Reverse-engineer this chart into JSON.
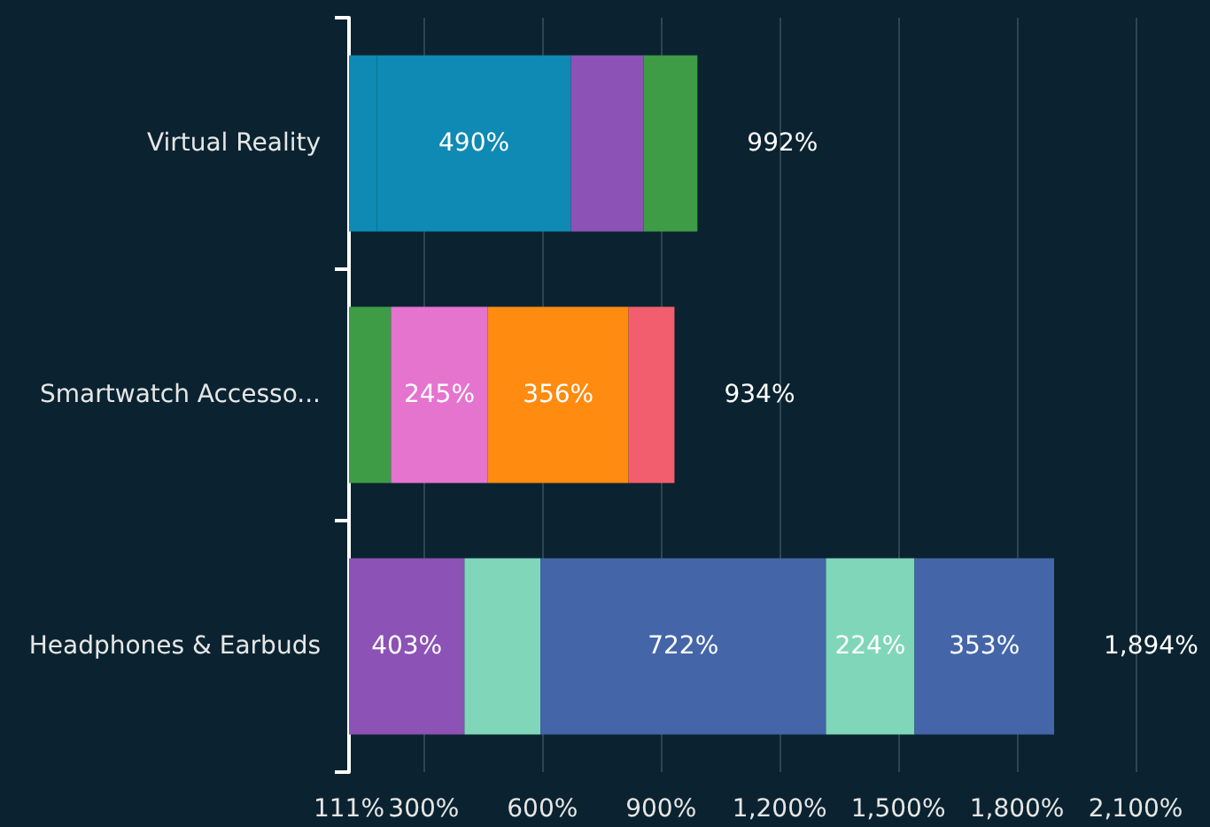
{
  "chart_data": {
    "type": "bar",
    "orientation": "horizontal",
    "stacked": true,
    "categories": [
      "Virtual Reality",
      "Smartwatch Accesso...",
      "Headphones & Earbuds"
    ],
    "series": [
      {
        "colors": [
          "#0e8ab4",
          "#3d9c45",
          "#8c52b6"
        ],
        "values": [
          182,
          217,
          403
        ],
        "value_labels": [
          null,
          null,
          "403%"
        ]
      },
      {
        "colors": [
          "#0e8ab4",
          "#e574cf",
          "#80d6b9"
        ],
        "values": [
          490,
          245,
          192
        ],
        "value_labels": [
          "490%",
          "245%",
          null
        ]
      },
      {
        "colors": [
          "#8c52b6",
          "#ff8b10",
          "#4466a8"
        ],
        "values": [
          184,
          356,
          722
        ],
        "value_labels": [
          null,
          "356%",
          "722%"
        ]
      },
      {
        "colors": [
          "#3d9c45",
          "#f25e6e",
          "#80d6b9"
        ],
        "values": [
          136,
          116,
          224
        ],
        "value_labels": [
          null,
          null,
          "224%"
        ]
      },
      {
        "colors": [
          "#4466a8",
          "#4466a8",
          "#4466a8"
        ],
        "values": [
          null,
          null,
          353
        ],
        "value_labels": [
          null,
          null,
          "353%"
        ]
      }
    ],
    "totals": [
      "992%",
      "934%",
      "1,894%"
    ],
    "xlim": [
      111,
      2100
    ],
    "xticks": [
      {
        "value": 111,
        "label": "111%"
      },
      {
        "value": 300,
        "label": "300%"
      },
      {
        "value": 600,
        "label": "600%"
      },
      {
        "value": 900,
        "label": "900%"
      },
      {
        "value": 1200,
        "label": "1,200%"
      },
      {
        "value": 1500,
        "label": "1,500%"
      },
      {
        "value": 1800,
        "label": "1,800%"
      },
      {
        "value": 2100,
        "label": "2,100%"
      }
    ],
    "grid": "x"
  }
}
